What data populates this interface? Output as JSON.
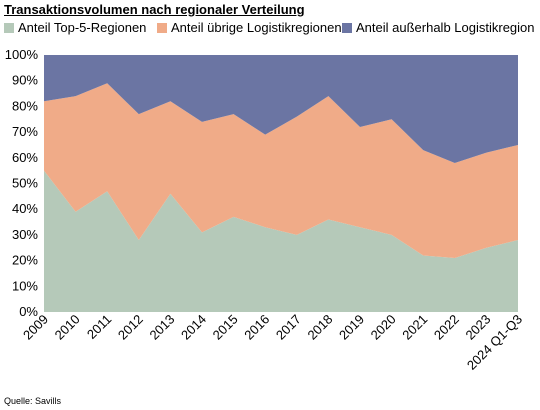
{
  "colors": {
    "top5": "#b5c9b9",
    "other": "#f0ab88",
    "outside": "#6b75a3"
  },
  "chart_data": {
    "type": "area",
    "stacked": true,
    "title": "Transaktionsvolumen nach regionaler Verteilung",
    "categories": [
      "2009",
      "2010",
      "2011",
      "2012",
      "2013",
      "2014",
      "2015",
      "2016",
      "2017",
      "2018",
      "2019",
      "2020",
      "2021",
      "2022",
      "2023",
      "2024 Q1-Q3"
    ],
    "series": [
      {
        "name": "Anteil Top-5-Regionen",
        "values": [
          55,
          39,
          47,
          28,
          46,
          31,
          37,
          33,
          30,
          36,
          33,
          30,
          22,
          21,
          25,
          28
        ]
      },
      {
        "name": "Anteil übrige Logistikregionen",
        "values": [
          27,
          45,
          42,
          49,
          36,
          43,
          40,
          36,
          46,
          48,
          39,
          45,
          41,
          37,
          37,
          37
        ]
      },
      {
        "name": "Anteil außerhalb Logistikregion",
        "values": [
          18,
          16,
          11,
          23,
          18,
          26,
          23,
          31,
          24,
          16,
          28,
          25,
          37,
          42,
          38,
          35
        ]
      }
    ],
    "yticks": [
      "0%",
      "10%",
      "20%",
      "30%",
      "40%",
      "50%",
      "60%",
      "70%",
      "80%",
      "90%",
      "100%"
    ],
    "ylim": [
      0,
      100
    ],
    "grid": false,
    "legend_position": "top"
  },
  "source": "Quelle: Savills"
}
